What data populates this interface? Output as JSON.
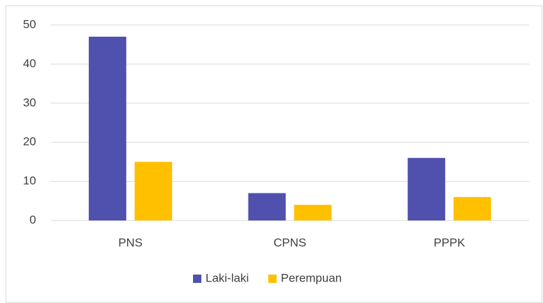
{
  "chart_data": {
    "type": "bar",
    "categories": [
      "PNS",
      "CPNS",
      "PPPK"
    ],
    "series": [
      {
        "name": "Laki-laki",
        "color": "#5050ae",
        "values": [
          47,
          7,
          16
        ]
      },
      {
        "name": "Perempuan",
        "color": "#ffc000",
        "values": [
          15,
          4,
          6
        ]
      }
    ],
    "ylim": [
      0,
      50
    ],
    "yticks": [
      0,
      10,
      20,
      30,
      40,
      50
    ],
    "grid": true,
    "legend": "bottom"
  }
}
